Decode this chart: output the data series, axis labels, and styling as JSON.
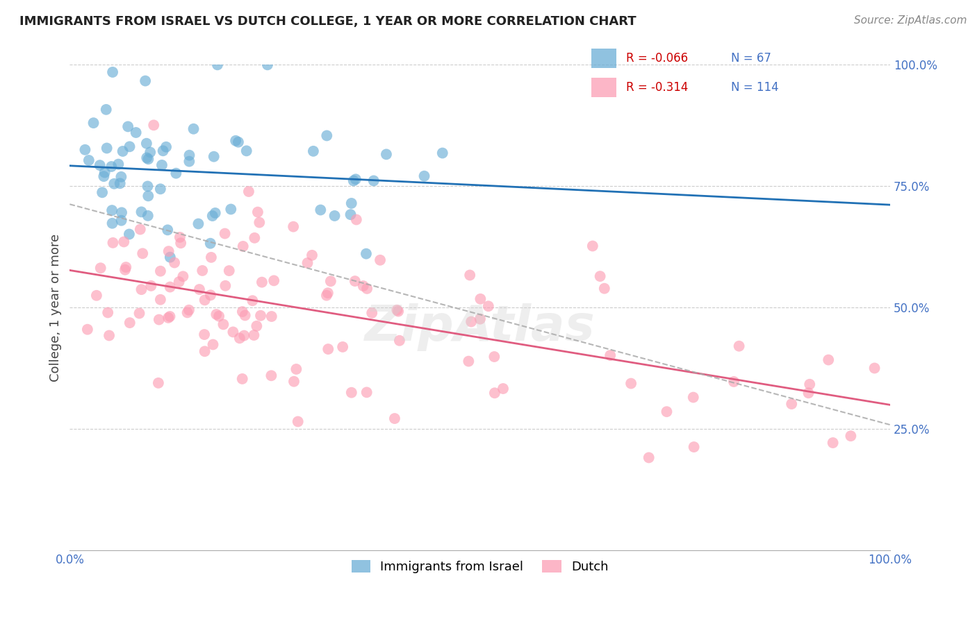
{
  "title": "IMMIGRANTS FROM ISRAEL VS DUTCH COLLEGE, 1 YEAR OR MORE CORRELATION CHART",
  "source_text": "Source: ZipAtlas.com",
  "ylabel": "College, 1 year or more",
  "xlim": [
    0.0,
    1.0
  ],
  "ylim": [
    0.0,
    1.0
  ],
  "blue_R": -0.066,
  "blue_N": 67,
  "pink_R": -0.314,
  "pink_N": 114,
  "blue_color": "#6baed6",
  "blue_line_color": "#2171b5",
  "pink_color": "#fc9eb5",
  "pink_line_color": "#e05c80",
  "dashed_line_color": "#aaaaaa",
  "watermark": "ZipAtlas",
  "legend_label_blue": "Immigrants from Israel",
  "legend_label_pink": "Dutch",
  "title_fontsize": 13,
  "axis_label_fontsize": 12,
  "tick_color": "#4472c4"
}
